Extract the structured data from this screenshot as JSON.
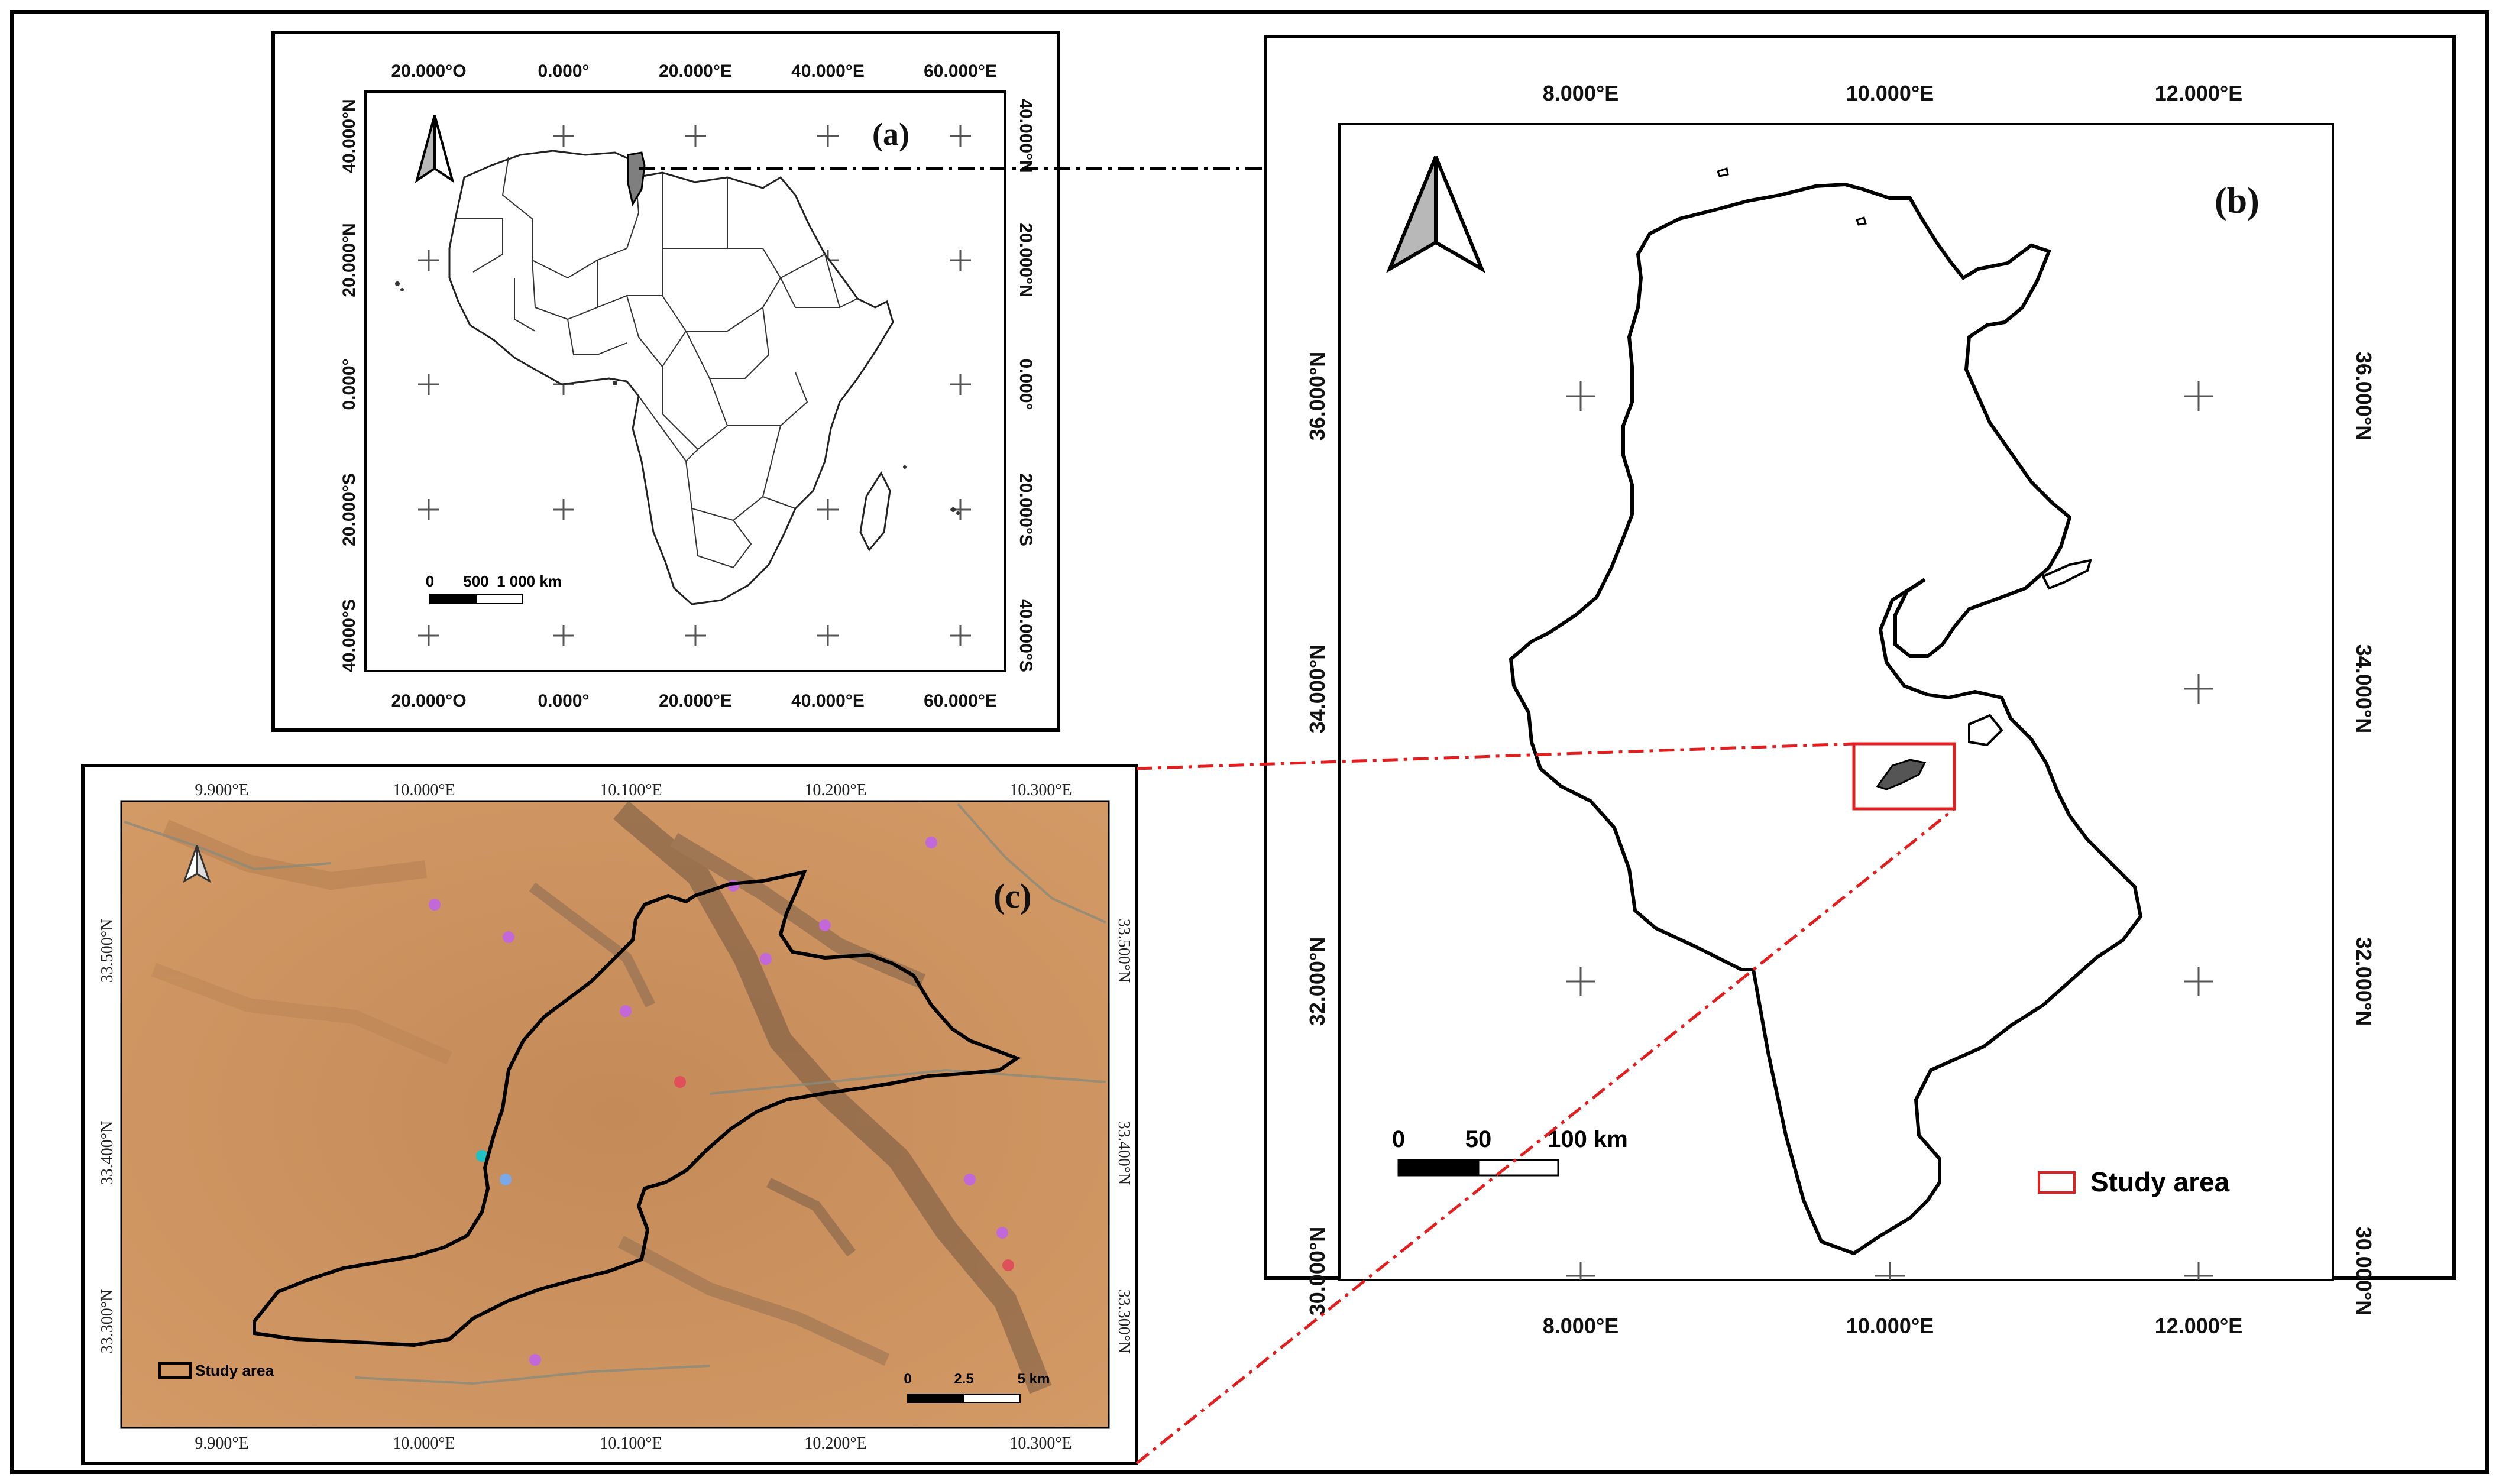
{
  "panels": {
    "a": {
      "label": "(a)",
      "top_ticks": [
        "20.000°O",
        "0.000°",
        "20.000°E",
        "40.000°E",
        "60.000°E"
      ],
      "bottom_ticks": [
        "20.000°O",
        "0.000°",
        "20.000°E",
        "40.000°E",
        "60.000°E"
      ],
      "left_ticks": [
        "40.000°N",
        "20.000°N",
        "0.000°",
        "20.000°S",
        "40.000°S"
      ],
      "right_ticks": [
        "40.000°N",
        "20.000°N",
        "0.000°",
        "20.000°S",
        "40.000°S"
      ],
      "scale_labels": [
        "0",
        "500",
        "1 000 km"
      ]
    },
    "b": {
      "label": "(b)",
      "top_ticks": [
        "8.000°E",
        "10.000°E",
        "12.000°E"
      ],
      "bottom_ticks": [
        "8.000°E",
        "10.000°E",
        "12.000°E"
      ],
      "left_ticks": [
        "36.000°N",
        "34.000°N",
        "32.000°N",
        "30.000°N"
      ],
      "right_ticks": [
        "36.000°N",
        "34.000°N",
        "32.000°N",
        "30.000°N"
      ],
      "scale_labels": [
        "0",
        "50",
        "100 km"
      ],
      "legend_label": "Study area"
    },
    "c": {
      "label": "(c)",
      "top_ticks": [
        "9.900°E",
        "10.000°E",
        "10.100°E",
        "10.200°E",
        "10.300°E"
      ],
      "bottom_ticks": [
        "9.900°E",
        "10.000°E",
        "10.100°E",
        "10.200°E",
        "10.300°E"
      ],
      "left_ticks": [
        "33.500°N",
        "33.400°N",
        "33.300°N"
      ],
      "right_ticks": [
        "33.500°N",
        "33.400°N",
        "33.300°N"
      ],
      "scale_labels": [
        "0",
        "2.5",
        "5 km"
      ],
      "legend_label": "Study area"
    }
  },
  "colors": {
    "frame": "#000000",
    "highlight": "#e02020",
    "country_fill": "#ffffff",
    "study_fill": "#555555",
    "terrain_base": "#c98e5c"
  }
}
